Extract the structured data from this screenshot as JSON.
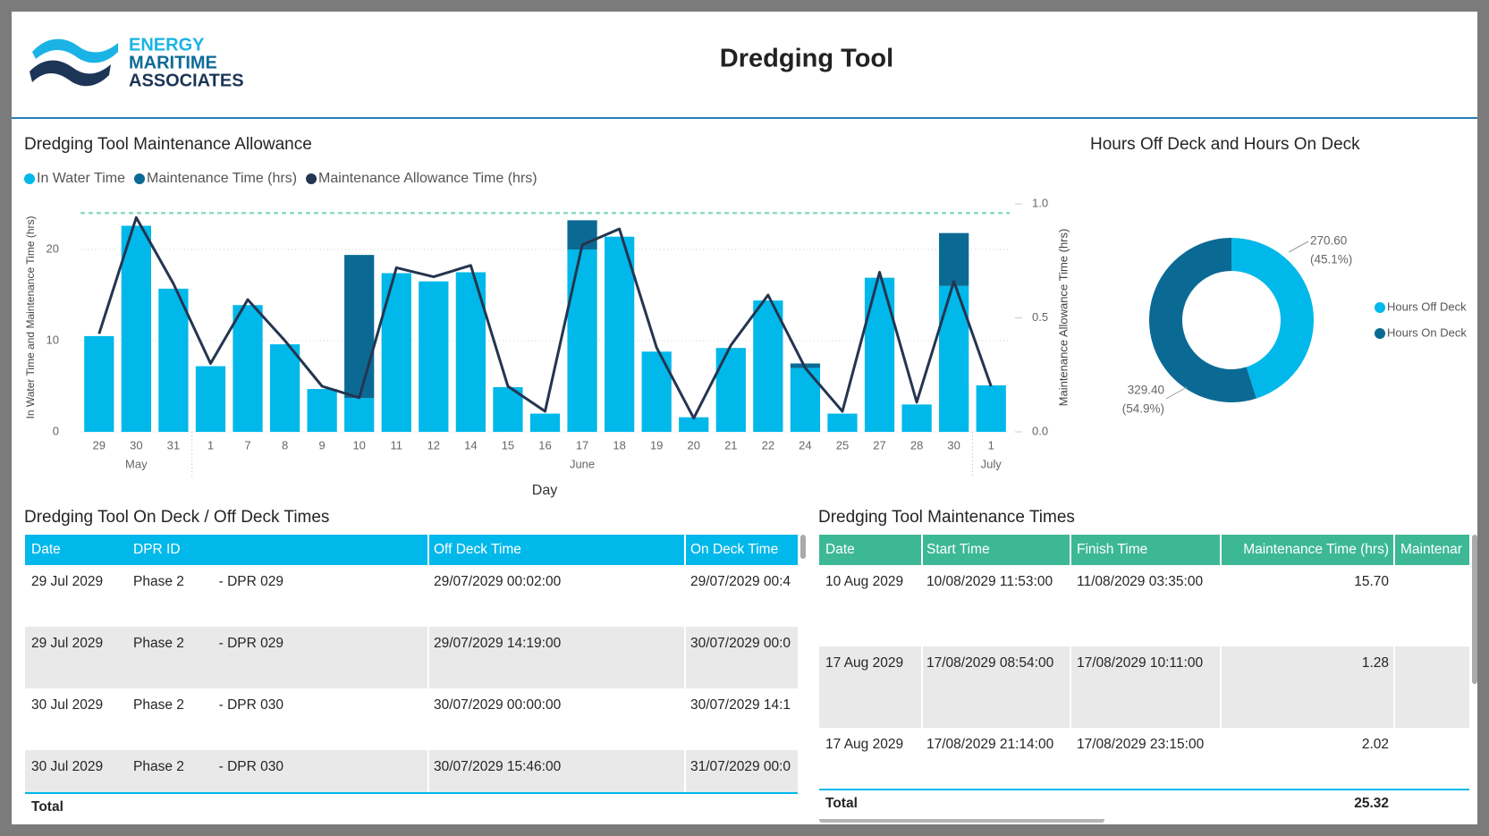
{
  "header": {
    "logo_lines": [
      "ENERGY",
      "MARITIME",
      "ASSOCIATES"
    ],
    "title": "Dredging Tool"
  },
  "chart_data": [
    {
      "type": "combo",
      "title": "Dredging Tool Maintenance Allowance",
      "x_label": "Day",
      "y_label": "In Water Time and Maintenance Time (hrs)",
      "y2_label": "Maintenance Allowance Time (hrs)",
      "categories": [
        "29",
        "30",
        "31",
        "1",
        "7",
        "8",
        "9",
        "10",
        "11",
        "12",
        "14",
        "15",
        "16",
        "17",
        "18",
        "19",
        "20",
        "21",
        "22",
        "24",
        "25",
        "27",
        "28",
        "30",
        "1"
      ],
      "months": [
        "May",
        "May",
        "May",
        "June",
        "June",
        "June",
        "June",
        "June",
        "June",
        "June",
        "June",
        "June",
        "June",
        "June",
        "June",
        "June",
        "June",
        "June",
        "June",
        "June",
        "June",
        "June",
        "June",
        "June",
        "July"
      ],
      "series": [
        {
          "name": "In Water Time",
          "type": "bar",
          "color": "#01B8EA",
          "values": [
            10.5,
            22.6,
            15.7,
            7.2,
            13.9,
            9.6,
            4.7,
            3.7,
            17.4,
            16.5,
            17.5,
            4.9,
            2.0,
            20.0,
            21.4,
            8.8,
            1.6,
            9.2,
            14.4,
            7.0,
            2.0,
            16.9,
            3.0,
            16.0,
            5.1
          ]
        },
        {
          "name": "Maintenance Time (hrs)",
          "type": "bar",
          "color": "#0B6A94",
          "values": [
            null,
            null,
            null,
            null,
            null,
            null,
            null,
            15.7,
            null,
            null,
            null,
            null,
            null,
            3.2,
            null,
            null,
            null,
            null,
            null,
            0.5,
            null,
            null,
            null,
            5.8,
            null
          ]
        },
        {
          "name": "Maintenance Allowance Time (hrs)",
          "type": "line",
          "axis": "y2",
          "color": "#243550",
          "values": [
            0.43,
            0.94,
            0.65,
            0.3,
            0.58,
            0.4,
            0.2,
            0.15,
            0.72,
            0.68,
            0.73,
            0.2,
            0.09,
            0.82,
            0.89,
            0.37,
            0.06,
            0.38,
            0.6,
            0.28,
            0.09,
            0.7,
            0.13,
            0.66,
            0.2
          ]
        }
      ],
      "reference_line": {
        "value": 24,
        "color": "#8ED9C6"
      },
      "ylim": [
        0,
        25
      ],
      "yticks": [
        0,
        10,
        20
      ],
      "y2lim": [
        0,
        1
      ],
      "y2ticks": [
        {
          "value": 0,
          "label": "0.0"
        },
        {
          "value": 0.5,
          "label": "0.5"
        },
        {
          "value": 1,
          "label": "1.0"
        }
      ],
      "grid": true,
      "stacked": true,
      "legend": "top-left"
    },
    {
      "type": "donut",
      "title": "Hours Off Deck and Hours On Deck",
      "categories": [
        "Hours Off Deck",
        "Hours On Deck"
      ],
      "values": [
        270.6,
        329.4
      ],
      "value_labels": [
        "270.60",
        "329.40"
      ],
      "percent_labels": [
        "(45.1%)",
        "(54.9%)"
      ],
      "colors": [
        "#01B8EA",
        "#0B6A94"
      ],
      "legend": "right"
    }
  ],
  "tables": [
    {
      "title": "Dredging Tool On Deck / Off Deck Times",
      "header_color": "#01B8EA",
      "columns": [
        "Date",
        "DPR ID",
        "Off Deck Time",
        "On Deck Time"
      ],
      "rows": [
        [
          "29 Jul 2029",
          "Phase 2         - DPR 029",
          "29/07/2029 00:02:00",
          "29/07/2029 00:4"
        ],
        [
          "29 Jul 2029",
          "Phase 2         - DPR 029",
          "29/07/2029 14:19:00",
          "30/07/2029 00:0"
        ],
        [
          "30 Jul 2029",
          "Phase 2         - DPR 030",
          "30/07/2029 00:00:00",
          "30/07/2029 14:1"
        ],
        [
          "30 Jul 2029",
          "Phase 2         - DPR 030",
          "30/07/2029 15:46:00",
          "31/07/2029 00:0"
        ]
      ],
      "total": {
        "label": "Total"
      }
    },
    {
      "title": "Dredging Tool Maintenance Times",
      "header_color": "#3DB897",
      "columns": [
        "Date",
        "Start Time",
        "Finish Time",
        "Maintenance Time (hrs)",
        "Maintenar"
      ],
      "rows": [
        [
          "10 Aug 2029",
          "10/08/2029 11:53:00",
          "11/08/2029 03:35:00",
          "15.70"
        ],
        [
          "17 Aug 2029",
          "17/08/2029 08:54:00",
          "17/08/2029 10:11:00",
          "1.28"
        ],
        [
          "17 Aug 2029",
          "17/08/2029 21:14:00",
          "17/08/2029 23:15:00",
          "2.02"
        ]
      ],
      "total": {
        "label": "Total",
        "value": "25.32"
      }
    }
  ]
}
